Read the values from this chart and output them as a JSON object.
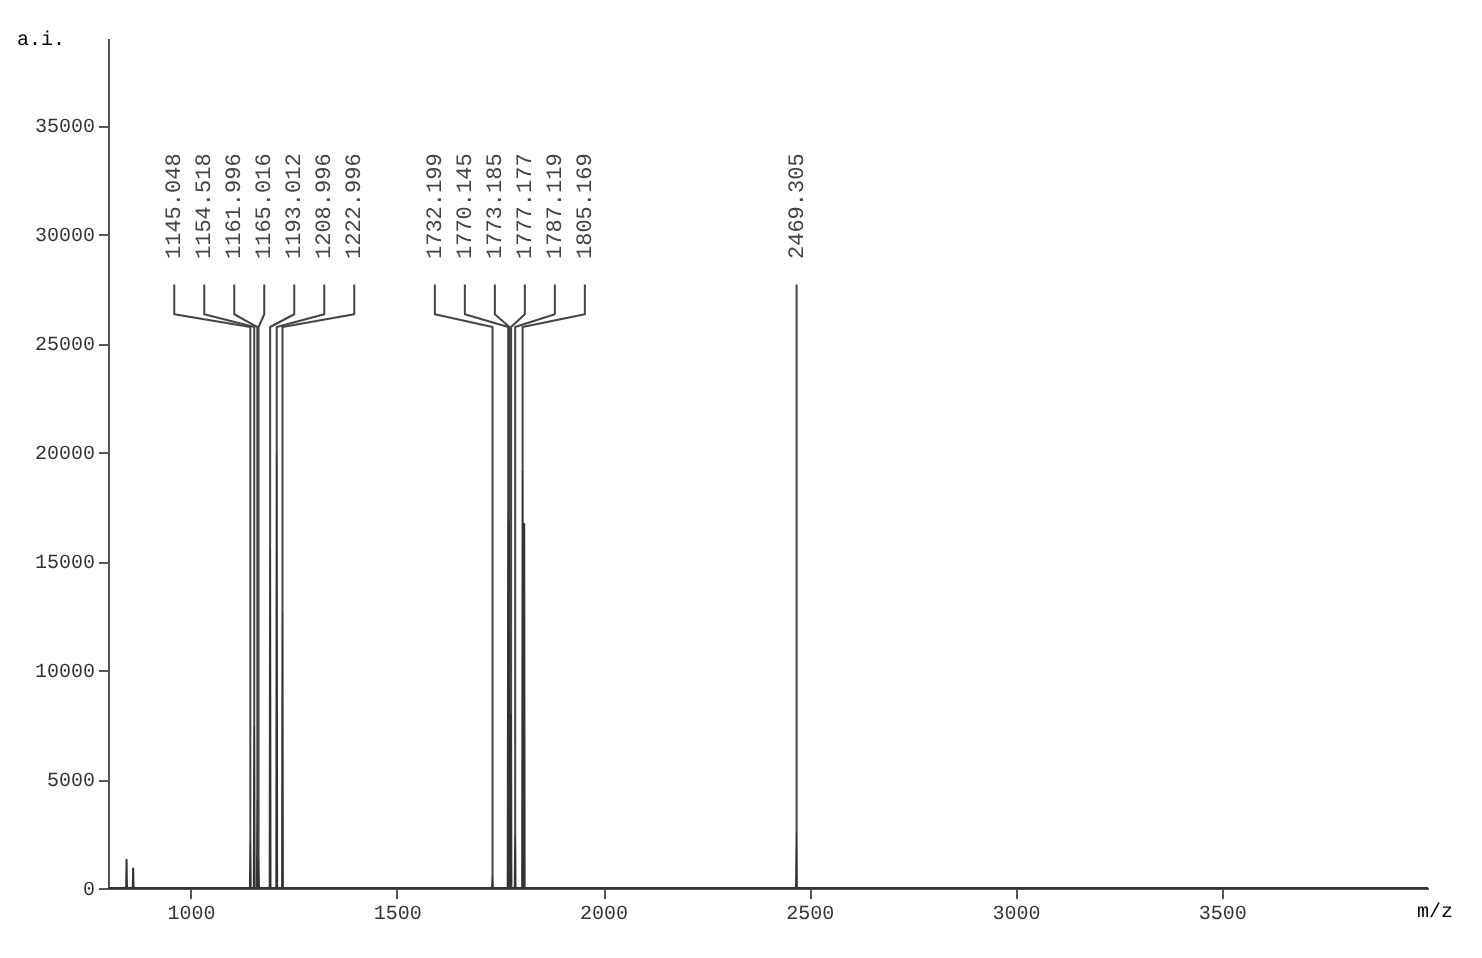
{
  "chart_data": {
    "type": "line",
    "xlabel": "m/z",
    "ylabel": "a.i.",
    "xlim": [
      800,
      4000
    ],
    "ylim": [
      0,
      39000
    ],
    "xticks": [
      1000,
      1500,
      2000,
      2500,
      3000,
      3500
    ],
    "yticks": [
      0,
      5000,
      10000,
      15000,
      20000,
      25000,
      30000,
      35000
    ],
    "grid": false,
    "marker": "none",
    "x": [
      800,
      844,
      845,
      846,
      860,
      861,
      862,
      1144,
      1145.048,
      1146,
      1153.5,
      1154.518,
      1155.5,
      1161,
      1161.996,
      1163,
      1164,
      1165.016,
      1166,
      1192,
      1193.012,
      1194,
      1208,
      1208.996,
      1210,
      1222,
      1222.996,
      1224,
      1731,
      1732.199,
      1733,
      1769,
      1770.145,
      1771,
      1772.2,
      1773.185,
      1774,
      1776,
      1777.177,
      1778,
      1786,
      1787.119,
      1788,
      1804,
      1805.169,
      1806,
      1808,
      1809,
      1810,
      2468,
      2469.305,
      2470,
      4000
    ],
    "series": [
      {
        "color": "#333333",
        "values": [
          0,
          0,
          1300,
          0,
          0,
          900,
          0,
          0,
          2100,
          0,
          0,
          7400,
          0,
          0,
          4000,
          0,
          0,
          1200,
          0,
          0,
          15500,
          0,
          0,
          19900,
          0,
          0,
          12600,
          0,
          0,
          500,
          0,
          0,
          17200,
          0,
          0,
          16800,
          0,
          0,
          8000,
          0,
          0,
          2400,
          0,
          0,
          19100,
          0,
          0,
          16700,
          0,
          0,
          2500,
          0,
          0
        ]
      }
    ],
    "annotations": [
      {
        "text": "1145.048",
        "x": 1145.048,
        "y": 2100
      },
      {
        "text": "1154.518",
        "x": 1154.518,
        "y": 7400
      },
      {
        "text": "1161.996",
        "x": 1161.996,
        "y": 4000
      },
      {
        "text": "1165.016",
        "x": 1165.016,
        "y": 1200
      },
      {
        "text": "1193.012",
        "x": 1193.012,
        "y": 15500
      },
      {
        "text": "1208.996",
        "x": 1208.996,
        "y": 19900
      },
      {
        "text": "1222.996",
        "x": 1222.996,
        "y": 12600
      },
      {
        "text": "1732.199",
        "x": 1732.199,
        "y": 500
      },
      {
        "text": "1770.145",
        "x": 1770.145,
        "y": 17200
      },
      {
        "text": "1773.185",
        "x": 1773.185,
        "y": 16800
      },
      {
        "text": "1777.177",
        "x": 1777.177,
        "y": 8000
      },
      {
        "text": "1787.119",
        "x": 1787.119,
        "y": 2400
      },
      {
        "text": "1805.169",
        "x": 1805.169,
        "y": 19100
      },
      {
        "text": "2469.305",
        "x": 2469.305,
        "y": 2500
      }
    ]
  }
}
